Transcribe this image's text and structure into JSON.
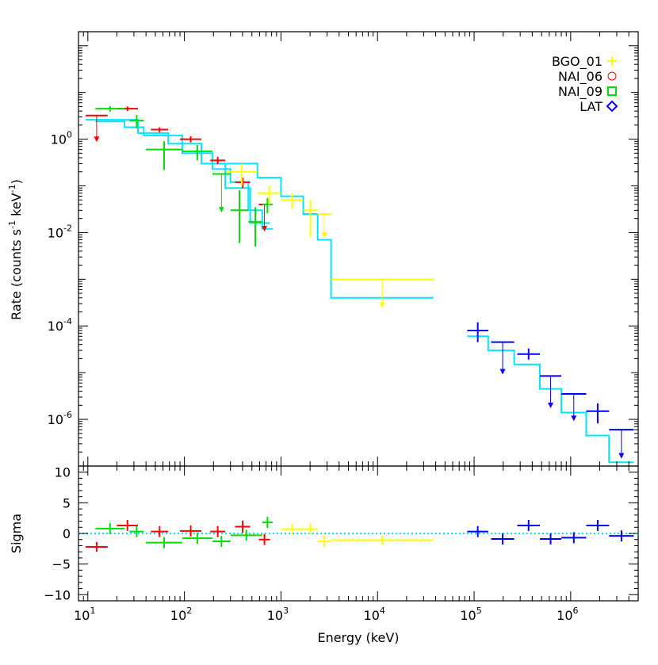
{
  "chart_data": {
    "type": "scatter",
    "title": "",
    "xlabel": "Energy (keV)",
    "colors": {
      "BGO_01": "#ffff00",
      "NAI_06": "#ff0000",
      "NAI_09": "#00dd00",
      "LAT": "#0000ff",
      "model": "#00e5ff"
    },
    "xlim": [
      8,
      5000000
    ],
    "x_ticks": [
      {
        "base": "10",
        "exp": "1",
        "value": 10
      },
      {
        "base": "10",
        "exp": "2",
        "value": 100
      },
      {
        "base": "10",
        "exp": "3",
        "value": 1000
      },
      {
        "base": "10",
        "exp": "4",
        "value": 10000
      },
      {
        "base": "10",
        "exp": "5",
        "value": 100000
      },
      {
        "base": "10",
        "exp": "6",
        "value": 1000000
      }
    ],
    "top_panel": {
      "ylabel": {
        "main": "Rate  (counts s",
        "sup1": "-1",
        "mid": " keV",
        "sup2": "-1",
        "end": ")"
      },
      "ylim": [
        1e-07,
        200
      ],
      "y_ticks": [
        {
          "base": "10",
          "exp": "0",
          "value": 1
        },
        {
          "base": "10",
          "exp": "-2",
          "value": 0.01
        },
        {
          "base": "10",
          "exp": "-4",
          "value": 0.0001
        },
        {
          "base": "10",
          "exp": "-6",
          "value": 1e-06
        }
      ],
      "legend": [
        {
          "name": "BGO_01",
          "marker": "plus",
          "color": "#ffff00"
        },
        {
          "name": "NAI_06",
          "marker": "circle",
          "color": "#ff0000"
        },
        {
          "name": "NAI_09",
          "marker": "square",
          "color": "#00dd00"
        },
        {
          "name": "LAT",
          "marker": "diamond",
          "color": "#0000ff"
        }
      ],
      "legend_position": "top-right",
      "series": [
        {
          "name": "NAI_06",
          "color": "#ff0000",
          "points": [
            {
              "x": [
                9.5,
                16
              ],
              "y": 3.2,
              "ul": true,
              "yl": 0.9
            },
            {
              "x": [
                20,
                33
              ],
              "y": 4.5,
              "yerr": [
                4.0,
                5.0
              ]
            },
            {
              "x": [
                45,
                68
              ],
              "y": 1.6,
              "yerr": [
                1.4,
                1.8
              ]
            },
            {
              "x": [
                90,
                150
              ],
              "y": 1.0,
              "yerr": [
                0.85,
                1.15
              ]
            },
            {
              "x": [
                185,
                265
              ],
              "y": 0.35,
              "yerr": [
                0.29,
                0.42
              ]
            },
            {
              "x": [
                335,
                480
              ],
              "y": 0.12,
              "yerr": [
                0.09,
                0.15
              ]
            },
            {
              "x": [
                590,
                770
              ],
              "y": 0.04,
              "ul": true,
              "yl": 0.011
            }
          ]
        },
        {
          "name": "NAI_09",
          "color": "#00dd00",
          "points": [
            {
              "x": [
                12,
                24
              ],
              "y": 4.5,
              "yerr": [
                3.9,
                5.1
              ]
            },
            {
              "x": [
                27,
                38
              ],
              "y": 2.5,
              "yerr": [
                1.7,
                3.3
              ]
            },
            {
              "x": [
                40,
                95
              ],
              "y": 0.6,
              "yerr": [
                0.22,
                0.9
              ]
            },
            {
              "x": [
                95,
                195
              ],
              "y": 0.55,
              "yerr": [
                0.35,
                0.75
              ]
            },
            {
              "x": [
                195,
                300
              ],
              "y": 0.18,
              "ul": true,
              "yl": 0.028
            },
            {
              "x": [
                300,
                460
              ],
              "y": 0.03,
              "yerr": [
                0.006,
                0.08
              ]
            },
            {
              "x": [
                460,
                640
              ],
              "y": 0.017,
              "yerr": [
                0.005,
                0.035
              ]
            },
            {
              "x": [
                640,
                820
              ],
              "y": 0.04,
              "yerr": [
                0.026,
                0.055
              ]
            }
          ]
        },
        {
          "name": "BGO_01",
          "color": "#ffff00",
          "points": [
            {
              "x": [
                270,
                570
              ],
              "y": 0.2,
              "yerr": [
                0.1,
                0.3
              ]
            },
            {
              "x": [
                570,
                1000
              ],
              "y": 0.07,
              "yerr": [
                0.04,
                0.1
              ]
            },
            {
              "x": [
                1000,
                1700
              ],
              "y": 0.05,
              "yerr": [
                0.032,
                0.07
              ]
            },
            {
              "x": [
                1700,
                2400
              ],
              "y": 0.03,
              "yerr": [
                0.008,
                0.05
              ]
            },
            {
              "x": [
                2400,
                3300
              ],
              "y": 0.025,
              "ul": true,
              "yl": 0.008
            },
            {
              "x": [
                3300,
                38000
              ],
              "y": 0.001,
              "ul": true,
              "yl": 0.00025
            }
          ]
        },
        {
          "name": "LAT",
          "color": "#0000ff",
          "points": [
            {
              "x": [
                85000,
                140000
              ],
              "y": 8e-05,
              "yerr": [
                4.5e-05,
                0.00012
              ]
            },
            {
              "x": [
                150000,
                260000
              ],
              "y": 4.5e-05,
              "ul": true,
              "yl": 9.5e-06
            },
            {
              "x": [
                280000,
                480000
              ],
              "y": 2.5e-05,
              "yerr": [
                1.9e-05,
                3.3e-05
              ]
            },
            {
              "x": [
                480000,
                800000
              ],
              "y": 8.5e-06,
              "ul": true,
              "yl": 1.8e-06
            },
            {
              "x": [
                800000,
                1450000
              ],
              "y": 3.5e-06,
              "ul": true,
              "yl": 9.5e-07
            },
            {
              "x": [
                1450000,
                2500000
              ],
              "y": 1.5e-06,
              "yerr": [
                8.2e-07,
                2.2e-06
              ]
            },
            {
              "x": [
                2500000,
                4500000
              ],
              "y": 6e-07,
              "ul": true,
              "yl": 1.5e-07
            }
          ]
        }
      ],
      "models": [
        {
          "name": "NAI_06 model",
          "color": "#00e5ff",
          "steps": [
            [
              9.5,
              16,
              2.6
            ],
            [
              16,
              33,
              2.6
            ],
            [
              33,
              68,
              1.35
            ],
            [
              68,
              150,
              0.8
            ],
            [
              150,
              265,
              0.3
            ],
            [
              265,
              480,
              0.09
            ],
            [
              480,
              770,
              0.016
            ]
          ]
        },
        {
          "name": "NAI_09 model",
          "color": "#00e5ff",
          "steps": [
            [
              12,
              24,
              2.4
            ],
            [
              24,
              38,
              1.8
            ],
            [
              38,
              95,
              1.2
            ],
            [
              95,
              195,
              0.5
            ],
            [
              195,
              300,
              0.23
            ],
            [
              300,
              460,
              0.12
            ],
            [
              460,
              640,
              0.03
            ],
            [
              640,
              820,
              0.012
            ]
          ]
        },
        {
          "name": "BGO_01 model",
          "color": "#00e5ff",
          "steps": [
            [
              270,
              570,
              0.3
            ],
            [
              570,
              1000,
              0.15
            ],
            [
              1000,
              1700,
              0.06
            ],
            [
              1700,
              2400,
              0.025
            ],
            [
              2400,
              3300,
              0.007
            ],
            [
              3300,
              38000,
              0.0004
            ]
          ]
        },
        {
          "name": "LAT model",
          "color": "#00e5ff",
          "steps": [
            [
              85000,
              140000,
              6e-05
            ],
            [
              140000,
              260000,
              3e-05
            ],
            [
              260000,
              480000,
              1.5e-05
            ],
            [
              480000,
              800000,
              4.5e-06
            ],
            [
              800000,
              1450000,
              1.4e-06
            ],
            [
              1450000,
              2500000,
              4.5e-07
            ],
            [
              2500000,
              4500000,
              1.2e-07
            ]
          ]
        }
      ]
    },
    "bottom_panel": {
      "ylabel": "Sigma",
      "ylim": [
        -11,
        11
      ],
      "y_ticks": [
        {
          "label": "10",
          "value": 10
        },
        {
          "label": "5",
          "value": 5
        },
        {
          "label": "0",
          "value": 0
        },
        {
          "label": "−5",
          "value": -5
        },
        {
          "label": "−10",
          "value": -10
        }
      ],
      "zero_line_color": "#00e5ff",
      "series": [
        {
          "name": "NAI_06",
          "color": "#ff0000",
          "points": [
            {
              "x": [
                9.5,
                16
              ],
              "y": -2.2,
              "yerr": [
                -3.0,
                -1.4
              ]
            },
            {
              "x": [
                20,
                33
              ],
              "y": 1.3,
              "yerr": [
                0.4,
                2.2
              ]
            },
            {
              "x": [
                45,
                68
              ],
              "y": 0.3,
              "yerr": [
                -0.6,
                1.2
              ]
            },
            {
              "x": [
                90,
                150
              ],
              "y": 0.4,
              "yerr": [
                -0.5,
                1.3
              ]
            },
            {
              "x": [
                185,
                265
              ],
              "y": 0.3,
              "yerr": [
                -0.6,
                1.2
              ]
            },
            {
              "x": [
                335,
                480
              ],
              "y": 1.1,
              "yerr": [
                0.1,
                2.1
              ]
            },
            {
              "x": [
                590,
                770
              ],
              "y": -1.0,
              "yerr": [
                -1.9,
                -0.1
              ]
            }
          ]
        },
        {
          "name": "NAI_09",
          "color": "#00dd00",
          "points": [
            {
              "x": [
                12,
                24
              ],
              "y": 0.8,
              "yerr": [
                -0.1,
                1.7
              ]
            },
            {
              "x": [
                27,
                38
              ],
              "y": 0.3,
              "yerr": [
                -0.6,
                1.2
              ]
            },
            {
              "x": [
                40,
                95
              ],
              "y": -1.5,
              "yerr": [
                -2.4,
                -0.6
              ]
            },
            {
              "x": [
                95,
                195
              ],
              "y": -0.8,
              "yerr": [
                -1.7,
                0.1
              ]
            },
            {
              "x": [
                195,
                300
              ],
              "y": -1.3,
              "yerr": [
                -2.2,
                -0.4
              ]
            },
            {
              "x": [
                300,
                640
              ],
              "y": -0.3,
              "yerr": [
                -1.2,
                0.6
              ]
            },
            {
              "x": [
                640,
                820
              ],
              "y": 1.8,
              "yerr": [
                0.9,
                2.7
              ]
            }
          ]
        },
        {
          "name": "BGO_01",
          "color": "#ffff00",
          "points": [
            {
              "x": [
                1000,
                1700
              ],
              "y": 0.7,
              "yerr": [
                -0.2,
                1.6
              ]
            },
            {
              "x": [
                1700,
                2400
              ],
              "y": 0.7,
              "yerr": [
                -0.2,
                1.6
              ]
            },
            {
              "x": [
                2400,
                3300
              ],
              "y": -1.3,
              "yerr": [
                -2.2,
                -0.4
              ]
            },
            {
              "x": [
                3300,
                38000
              ],
              "y": -1.1,
              "yerr": [
                -1.8,
                -0.4
              ]
            }
          ]
        },
        {
          "name": "LAT",
          "color": "#0000ff",
          "points": [
            {
              "x": [
                85000,
                140000
              ],
              "y": 0.3,
              "yerr": [
                -0.6,
                1.2
              ]
            },
            {
              "x": [
                150000,
                260000
              ],
              "y": -0.9,
              "yerr": [
                -1.8,
                0.0
              ]
            },
            {
              "x": [
                280000,
                480000
              ],
              "y": 1.3,
              "yerr": [
                0.4,
                2.2
              ]
            },
            {
              "x": [
                480000,
                800000
              ],
              "y": -0.9,
              "yerr": [
                -1.8,
                0.0
              ]
            },
            {
              "x": [
                800000,
                1450000
              ],
              "y": -0.7,
              "yerr": [
                -1.6,
                0.2
              ]
            },
            {
              "x": [
                1450000,
                2500000
              ],
              "y": 1.3,
              "yerr": [
                0.4,
                2.2
              ]
            },
            {
              "x": [
                2500000,
                4500000
              ],
              "y": -0.4,
              "yerr": [
                -1.3,
                0.5
              ]
            }
          ]
        }
      ]
    }
  }
}
